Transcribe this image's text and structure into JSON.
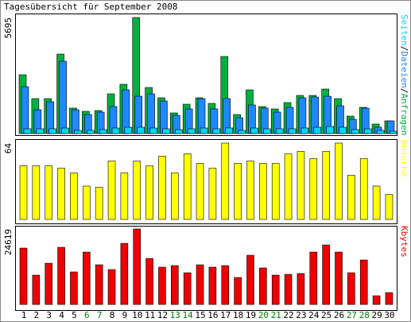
{
  "chart_data": [
    {
      "type": "bar",
      "title": "Tagesübersicht für September 2008",
      "ylim": [
        0,
        5695
      ],
      "yticks": [
        5695
      ],
      "legend_separator": "/",
      "series": [
        {
          "name": "Anfragen",
          "color": "#00b040",
          "values": [
            2886,
            1716,
            1716,
            3900,
            1248,
            1092,
            1131,
            1950,
            2418,
            5695,
            2262,
            1755,
            1014,
            1443,
            1755,
            1482,
            3783,
            936,
            2145,
            1326,
            1209,
            1521,
            1872,
            1872,
            2184,
            1716,
            858,
            1287,
            468,
            624
          ]
        },
        {
          "name": "Dateien",
          "color": "#1e88ff",
          "values": [
            2301,
            1170,
            1560,
            3549,
            1170,
            936,
            1053,
            1326,
            2145,
            1833,
            1950,
            1599,
            897,
            1209,
            1716,
            1209,
            1716,
            780,
            1404,
            1248,
            1053,
            1287,
            1755,
            1794,
            1833,
            1365,
            702,
            1248,
            312,
            624
          ]
        },
        {
          "name": "Seiten",
          "color": "#00d8f0",
          "values": [
            234,
            234,
            234,
            273,
            156,
            156,
            195,
            273,
            312,
            312,
            273,
            234,
            195,
            234,
            273,
            234,
            273,
            156,
            273,
            234,
            234,
            234,
            273,
            312,
            351,
            312,
            195,
            234,
            156,
            117
          ]
        }
      ]
    },
    {
      "type": "bar",
      "ylim": [
        0,
        64
      ],
      "yticks": [
        64
      ],
      "series": [
        {
          "name": "Besuche",
          "color": "#ffff00",
          "values": [
            45,
            45,
            45,
            43,
            39,
            28,
            27,
            49,
            39,
            49,
            45,
            53,
            39,
            55,
            47,
            43,
            64,
            47,
            49,
            47,
            47,
            55,
            57,
            51,
            57,
            64,
            37,
            51,
            28,
            21
          ]
        }
      ]
    },
    {
      "type": "bar",
      "ylim": [
        0,
        24619
      ],
      "yticks": [
        24619
      ],
      "categories": [
        "1",
        "2",
        "3",
        "4",
        "5",
        "6",
        "7",
        "8",
        "9",
        "10",
        "11",
        "12",
        "13",
        "14",
        "15",
        "16",
        "17",
        "18",
        "19",
        "20",
        "21",
        "22",
        "23",
        "24",
        "25",
        "26",
        "27",
        "28",
        "29",
        "30"
      ],
      "category_colors": [
        "#000000",
        "#000000",
        "#000000",
        "#000000",
        "#000000",
        "#008000",
        "#008000",
        "#000000",
        "#000000",
        "#000000",
        "#000000",
        "#000000",
        "#008000",
        "#008000",
        "#000000",
        "#000000",
        "#000000",
        "#000000",
        "#000000",
        "#008000",
        "#008000",
        "#000000",
        "#000000",
        "#000000",
        "#000000",
        "#000000",
        "#008000",
        "#008000",
        "#000000",
        "#000000"
      ],
      "series": [
        {
          "name": "Kbytes",
          "color": "#ee0000",
          "values": [
            18390,
            9583,
            13468,
            18648,
            10619,
            17094,
            12950,
            11396,
            19943,
            24619,
            15022,
            12173,
            12691,
            10360,
            12950,
            12173,
            12691,
            8806,
            16058,
            11914,
            9583,
            9842,
            10101,
            17094,
            19425,
            17094,
            10360,
            14504,
            2849,
            3885
          ]
        }
      ]
    }
  ]
}
